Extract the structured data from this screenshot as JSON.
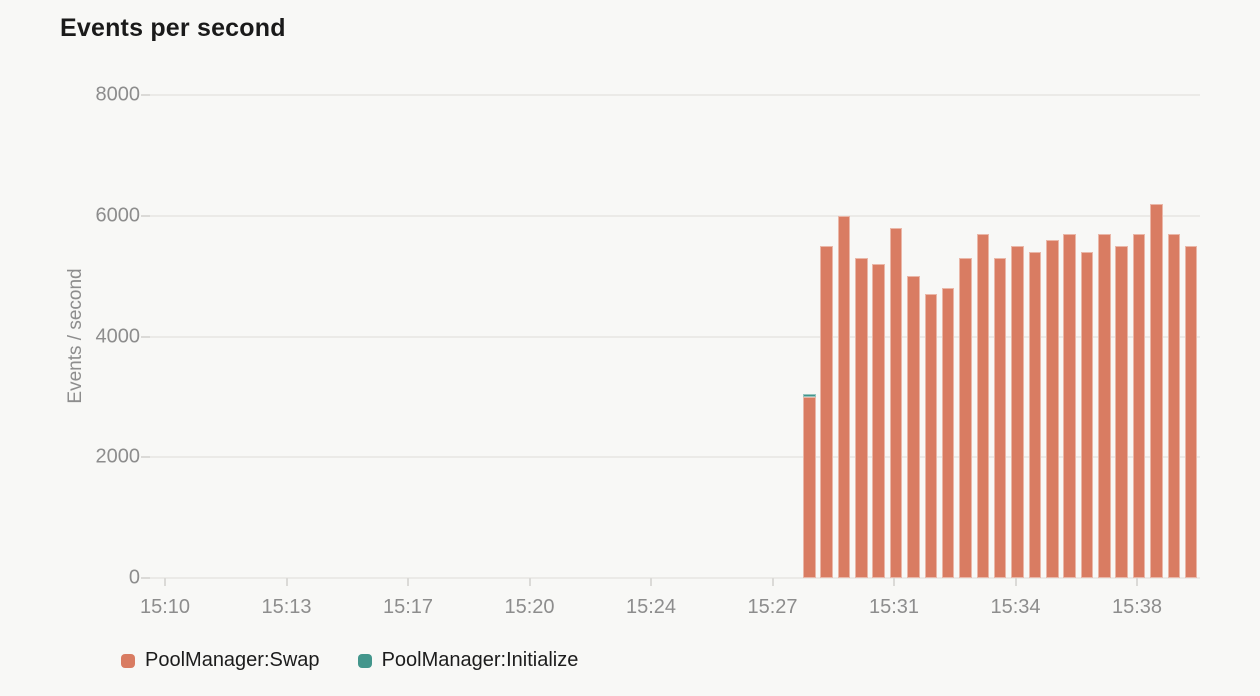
{
  "page": {
    "background_color": "#f8f8f6"
  },
  "chart_data": {
    "type": "bar",
    "stacked": true,
    "title": "Events per second",
    "ylabel": "Events / second",
    "xlabel": "",
    "ylim": [
      0,
      8000
    ],
    "yticks": [
      0,
      2000,
      4000,
      6000,
      8000
    ],
    "xtick_labels": [
      "15:10",
      "15:13",
      "15:17",
      "15:20",
      "15:24",
      "15:27",
      "15:31",
      "15:34",
      "15:38"
    ],
    "grid": true,
    "legend_position": "bottom-left",
    "bar_interval_seconds": 30,
    "x_times": [
      "15:28:30",
      "15:29:00",
      "15:29:30",
      "15:30:00",
      "15:30:30",
      "15:31:00",
      "15:31:30",
      "15:32:00",
      "15:32:30",
      "15:33:00",
      "15:33:30",
      "15:34:00",
      "15:34:30",
      "15:35:00",
      "15:35:30",
      "15:36:00",
      "15:36:30",
      "15:37:00",
      "15:37:30",
      "15:38:00",
      "15:38:30",
      "15:39:00",
      "15:39:30"
    ],
    "series": [
      {
        "name": "PoolManager:Swap",
        "color": "#d97c62",
        "values": [
          3000,
          5500,
          6000,
          5300,
          5200,
          5800,
          5000,
          4700,
          4800,
          5300,
          5700,
          5300,
          5500,
          5400,
          5600,
          5700,
          5400,
          5700,
          5500,
          5700,
          6200,
          5700,
          5500
        ]
      },
      {
        "name": "PoolManager:Initialize",
        "color": "#43968c",
        "values": [
          50,
          0,
          0,
          0,
          0,
          0,
          0,
          0,
          0,
          0,
          0,
          0,
          0,
          0,
          0,
          0,
          0,
          0,
          0,
          0,
          0,
          0,
          0
        ]
      }
    ]
  }
}
